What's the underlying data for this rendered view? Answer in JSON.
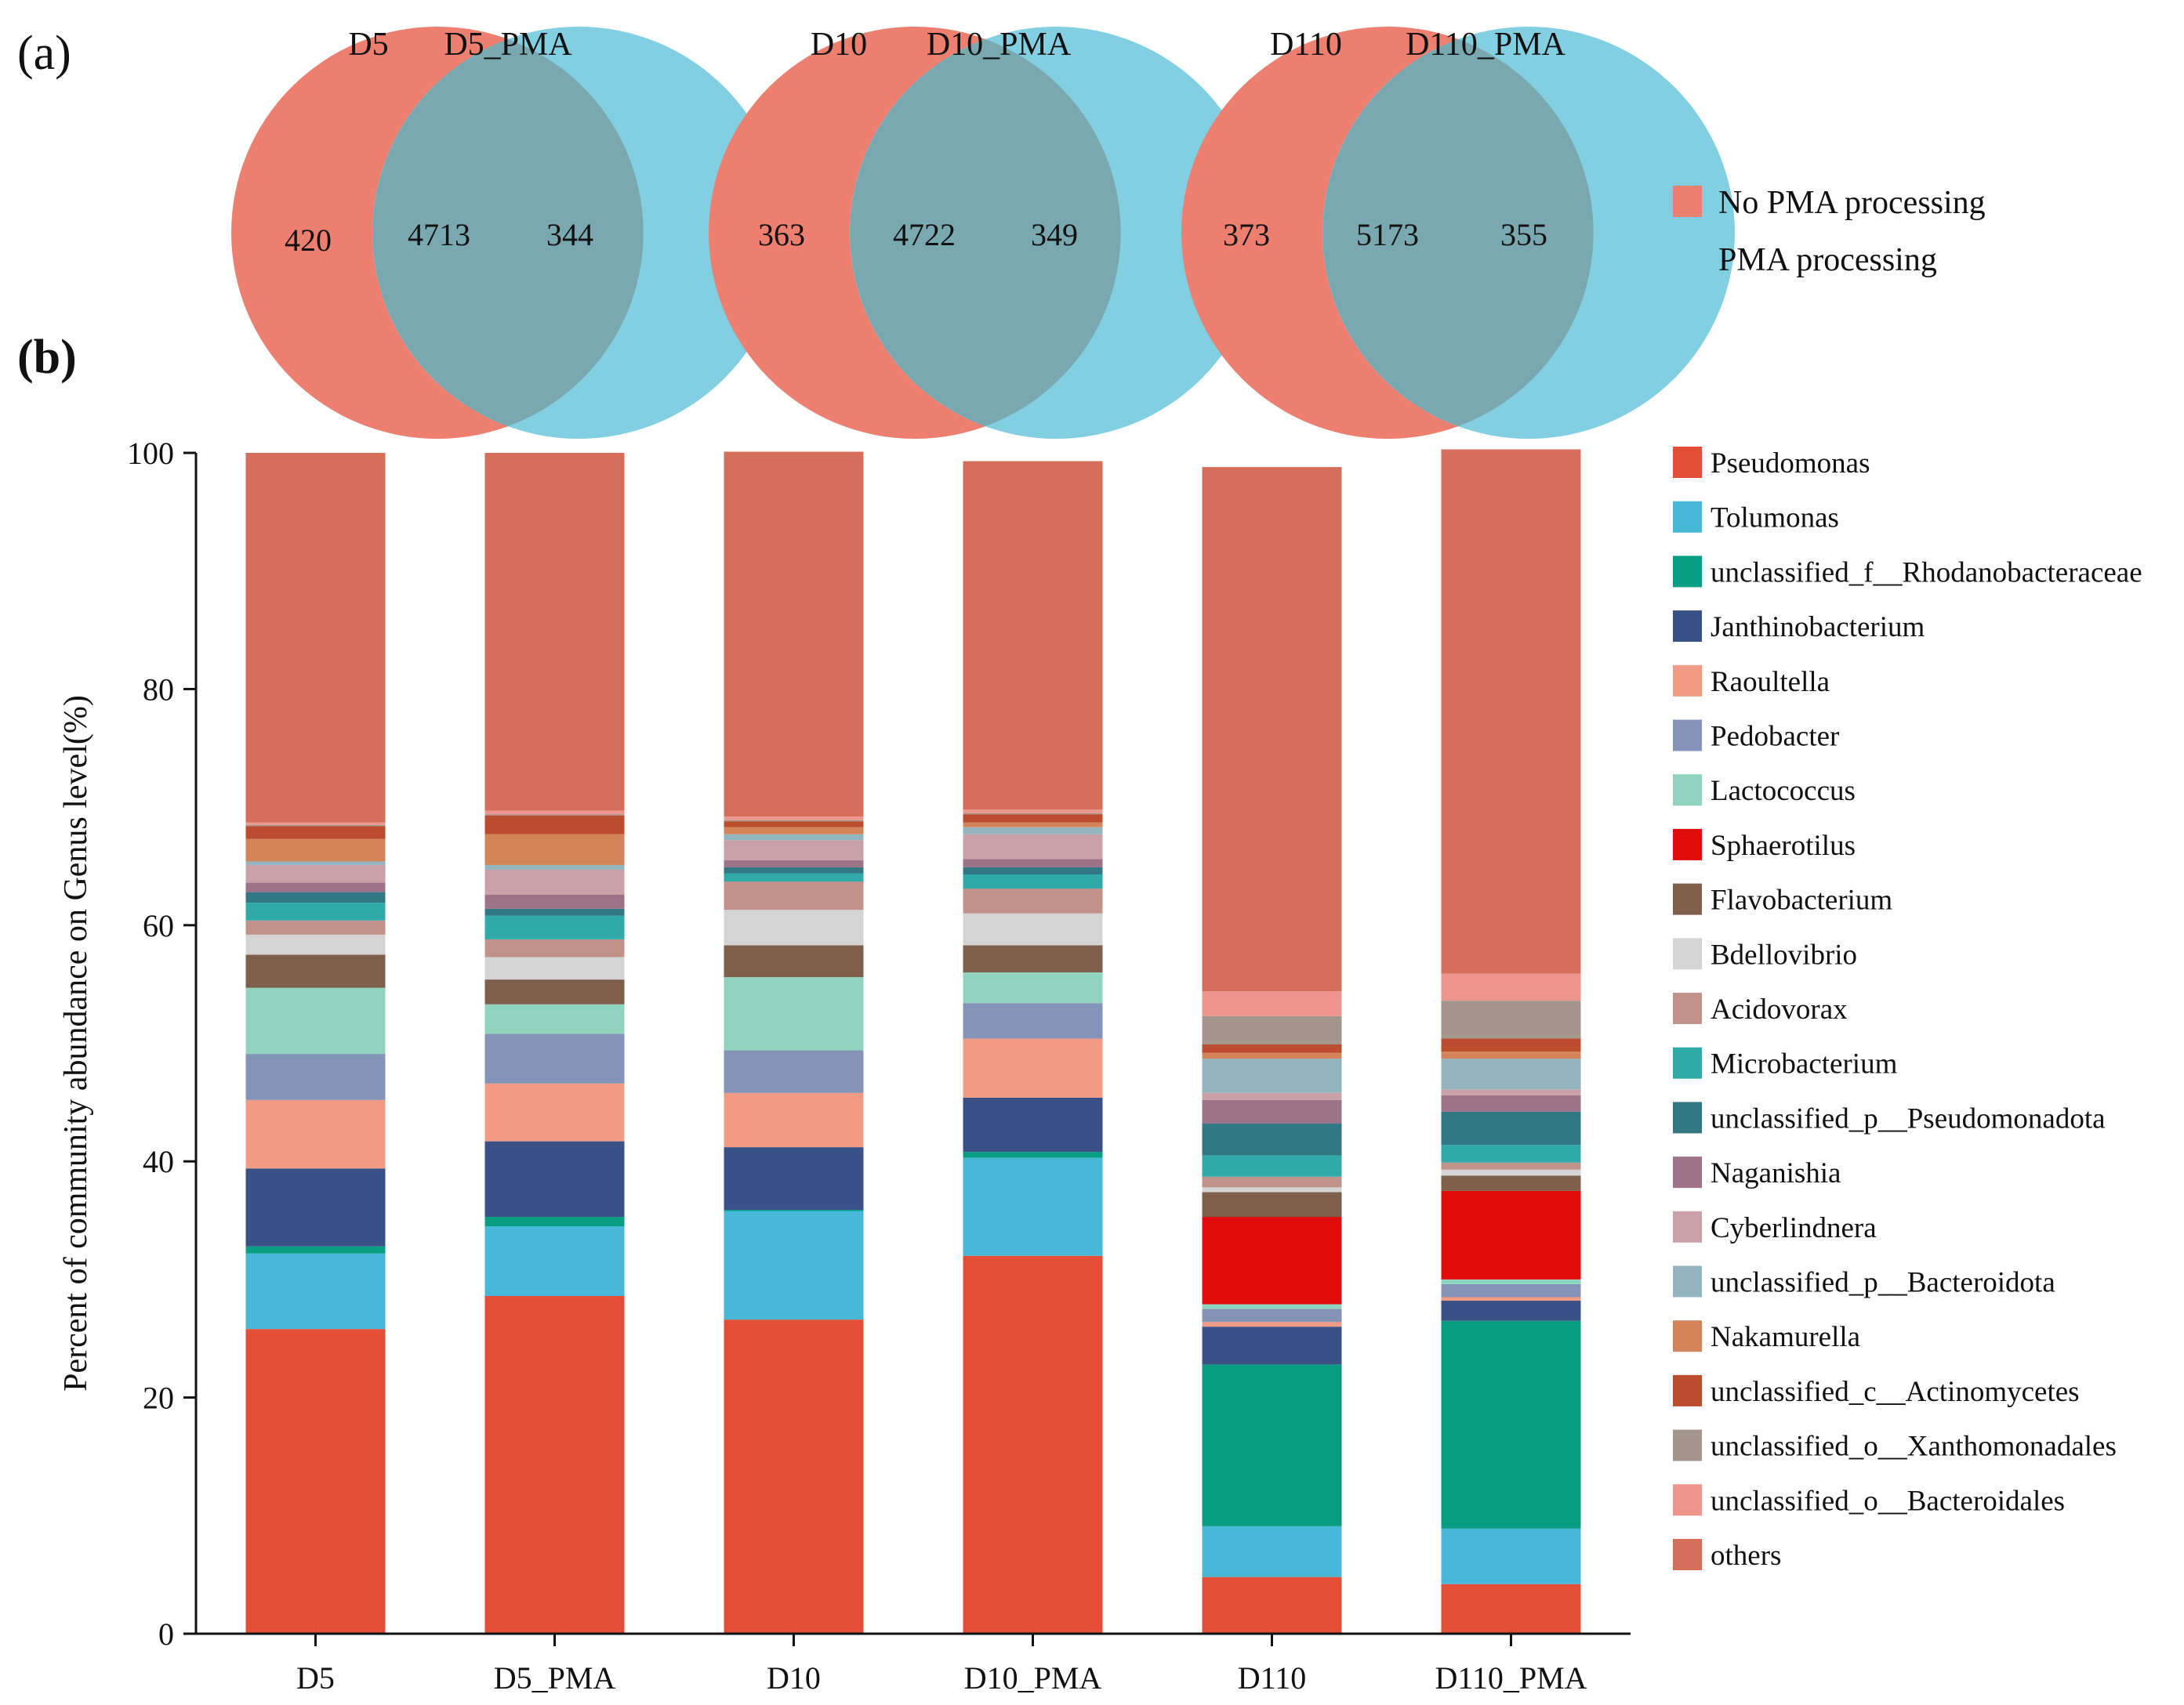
{
  "panel_a_label": "(a)",
  "panel_b_label": "(b)",
  "venn": [
    {
      "left_label": "D5",
      "right_label": "D5_PMA",
      "left_only": "420",
      "shared": "4713",
      "right_only": "344"
    },
    {
      "left_label": "D10",
      "right_label": "D10_PMA",
      "left_only": "363",
      "shared": "4722",
      "right_only": "349"
    },
    {
      "left_label": "D110",
      "right_label": "D110_PMA",
      "left_only": "373",
      "shared": "5173",
      "right_only": "355"
    }
  ],
  "venn_legend": [
    {
      "label": "No PMA processing",
      "color": "#ec7f70"
    },
    {
      "label": "PMA processing",
      "color": "#82cfe2"
    }
  ],
  "chart_data": {
    "type": "bar",
    "stacked": true,
    "title": "",
    "xlabel": "",
    "ylabel": "Percent of community abundance on Genus level(%)",
    "ylim": [
      0,
      100
    ],
    "yticks": [
      "0",
      "20",
      "40",
      "60",
      "80",
      "100"
    ],
    "categories": [
      "D5",
      "D5_PMA",
      "D10",
      "D10_PMA",
      "D110",
      "D110_PMA"
    ],
    "series": [
      {
        "name": "Pseudomonas",
        "color": "#e54e36",
        "values": [
          25.8,
          28.6,
          26.6,
          32.0,
          4.8,
          4.2
        ]
      },
      {
        "name": "Tolumonas",
        "color": "#47b8d8",
        "values": [
          6.4,
          5.9,
          9.2,
          8.3,
          4.3,
          4.7
        ]
      },
      {
        "name": "unclassified_f__Rhodanobacteraceae",
        "color": "#089e83",
        "values": [
          0.6,
          0.8,
          0.1,
          0.5,
          13.7,
          17.6
        ]
      },
      {
        "name": "Janthinobacterium",
        "color": "#3a5188",
        "values": [
          6.6,
          6.4,
          5.3,
          4.6,
          3.2,
          1.7
        ]
      },
      {
        "name": "Raoultella",
        "color": "#f19b84",
        "values": [
          5.8,
          4.9,
          4.6,
          5.0,
          0.4,
          0.3
        ]
      },
      {
        "name": "Pedobacter",
        "color": "#8394b8",
        "values": [
          3.9,
          4.2,
          3.6,
          3.0,
          1.1,
          1.1
        ]
      },
      {
        "name": "Lactococcus",
        "color": "#90d4c0",
        "values": [
          5.6,
          2.5,
          6.2,
          2.6,
          0.4,
          0.4
        ]
      },
      {
        "name": "Sphaerotilus",
        "color": "#e00d0c",
        "values": [
          0.0,
          0.0,
          0.0,
          0.0,
          7.4,
          7.5
        ]
      },
      {
        "name": "Flavobacterium",
        "color": "#7e5f4c",
        "values": [
          2.8,
          2.1,
          2.7,
          2.3,
          2.1,
          1.3
        ]
      },
      {
        "name": "Bdellovibrio",
        "color": "#d4d4d4",
        "values": [
          1.7,
          1.9,
          3.0,
          2.7,
          0.4,
          0.5
        ]
      },
      {
        "name": "Acidovorax",
        "color": "#c0928a",
        "values": [
          1.2,
          1.5,
          2.4,
          2.1,
          0.9,
          0.6
        ]
      },
      {
        "name": "Microbacterium",
        "color": "#2faaa9",
        "values": [
          1.5,
          2.0,
          0.7,
          1.2,
          1.8,
          1.5
        ]
      },
      {
        "name": "unclassified_p__Pseudomonadota",
        "color": "#327884",
        "values": [
          0.9,
          0.6,
          0.5,
          0.6,
          2.7,
          2.8
        ]
      },
      {
        "name": "Naganishia",
        "color": "#9c7388",
        "values": [
          0.8,
          1.2,
          0.6,
          0.7,
          2.0,
          1.4
        ]
      },
      {
        "name": "Cyberlindnera",
        "color": "#caa1a8",
        "values": [
          1.5,
          2.1,
          1.7,
          2.1,
          0.6,
          0.5
        ]
      },
      {
        "name": "unclassified_p__Bacteroidota",
        "color": "#93b5c0",
        "values": [
          0.3,
          0.4,
          0.5,
          0.6,
          2.9,
          2.6
        ]
      },
      {
        "name": "Nakamurella",
        "color": "#d48459",
        "values": [
          1.9,
          2.6,
          0.6,
          0.4,
          0.5,
          0.6
        ]
      },
      {
        "name": "unclassified_c__Actinomycetes",
        "color": "#bb4c2d",
        "values": [
          1.1,
          1.6,
          0.5,
          0.7,
          0.7,
          1.1
        ]
      },
      {
        "name": "unclassified_o__Xanthomonadales",
        "color": "#a4968d",
        "values": [
          0.1,
          0.1,
          0.1,
          0.1,
          2.4,
          3.2
        ]
      },
      {
        "name": "unclassified_o__Bacteroidales",
        "color": "#ee958d",
        "values": [
          0.2,
          0.3,
          0.3,
          0.3,
          2.1,
          2.3
        ]
      },
      {
        "name": "others",
        "color": "#d56e5b",
        "values": [
          31.3,
          30.3,
          30.9,
          29.5,
          44.4,
          44.4
        ]
      }
    ]
  }
}
